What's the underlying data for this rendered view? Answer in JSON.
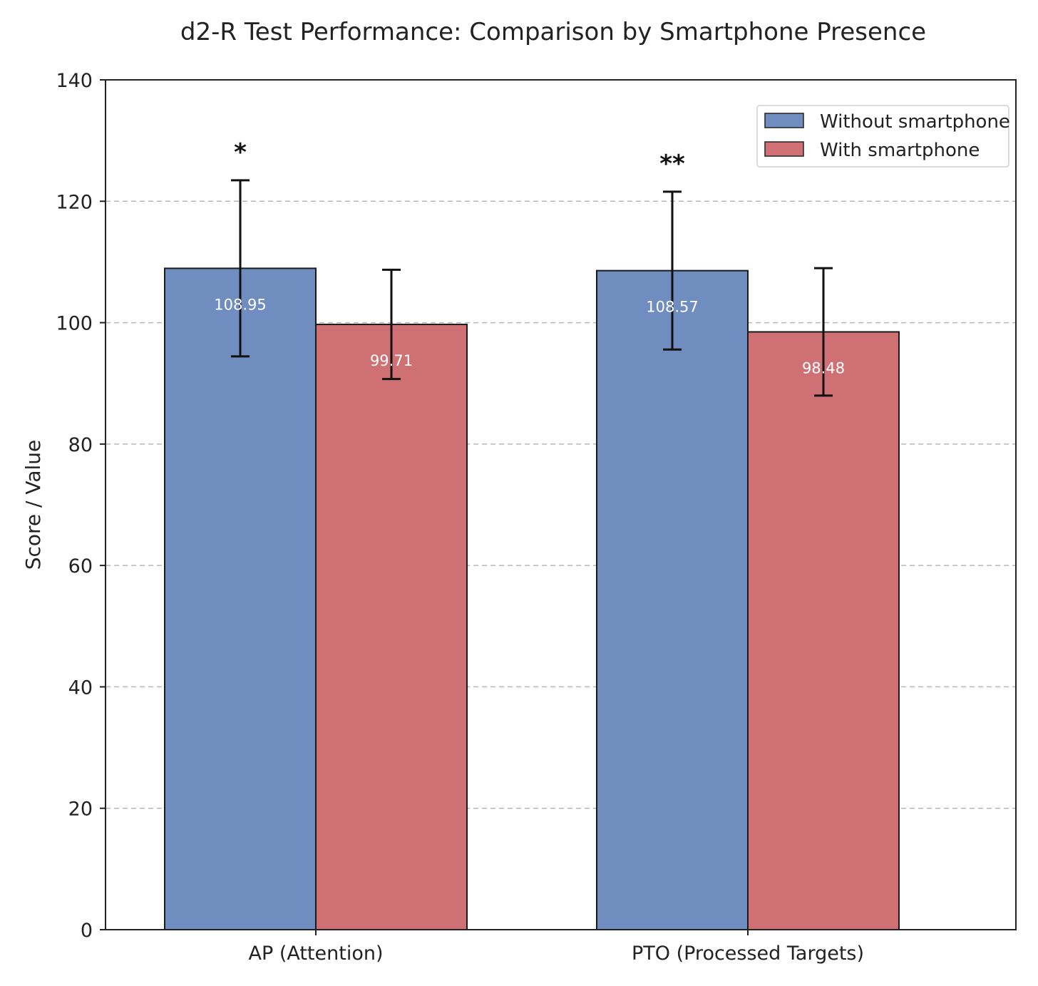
{
  "chart_data": {
    "type": "bar",
    "title": "d2-R Test Performance: Comparison by Smartphone Presence",
    "xlabel": "",
    "ylabel": "Score / Value",
    "ylim": [
      0,
      140
    ],
    "yticks": [
      0,
      20,
      40,
      60,
      80,
      100,
      120,
      140
    ],
    "grid": "horizontal dashed",
    "legend_position": "top-right",
    "categories": [
      "AP (Attention)",
      "PTO (Processed Targets)"
    ],
    "series": [
      {
        "name": "Without smartphone",
        "color": "#6f8dbe",
        "values": [
          108.95,
          108.57
        ],
        "value_labels": [
          "108.95",
          "108.57"
        ],
        "error": [
          14.5,
          13.0
        ]
      },
      {
        "name": "With smartphone",
        "color": "#cf7074",
        "values": [
          99.71,
          98.48
        ],
        "value_labels": [
          "99.71",
          "98.48"
        ],
        "error": [
          9.0,
          10.5
        ]
      }
    ],
    "significance": [
      "*",
      "**"
    ]
  }
}
